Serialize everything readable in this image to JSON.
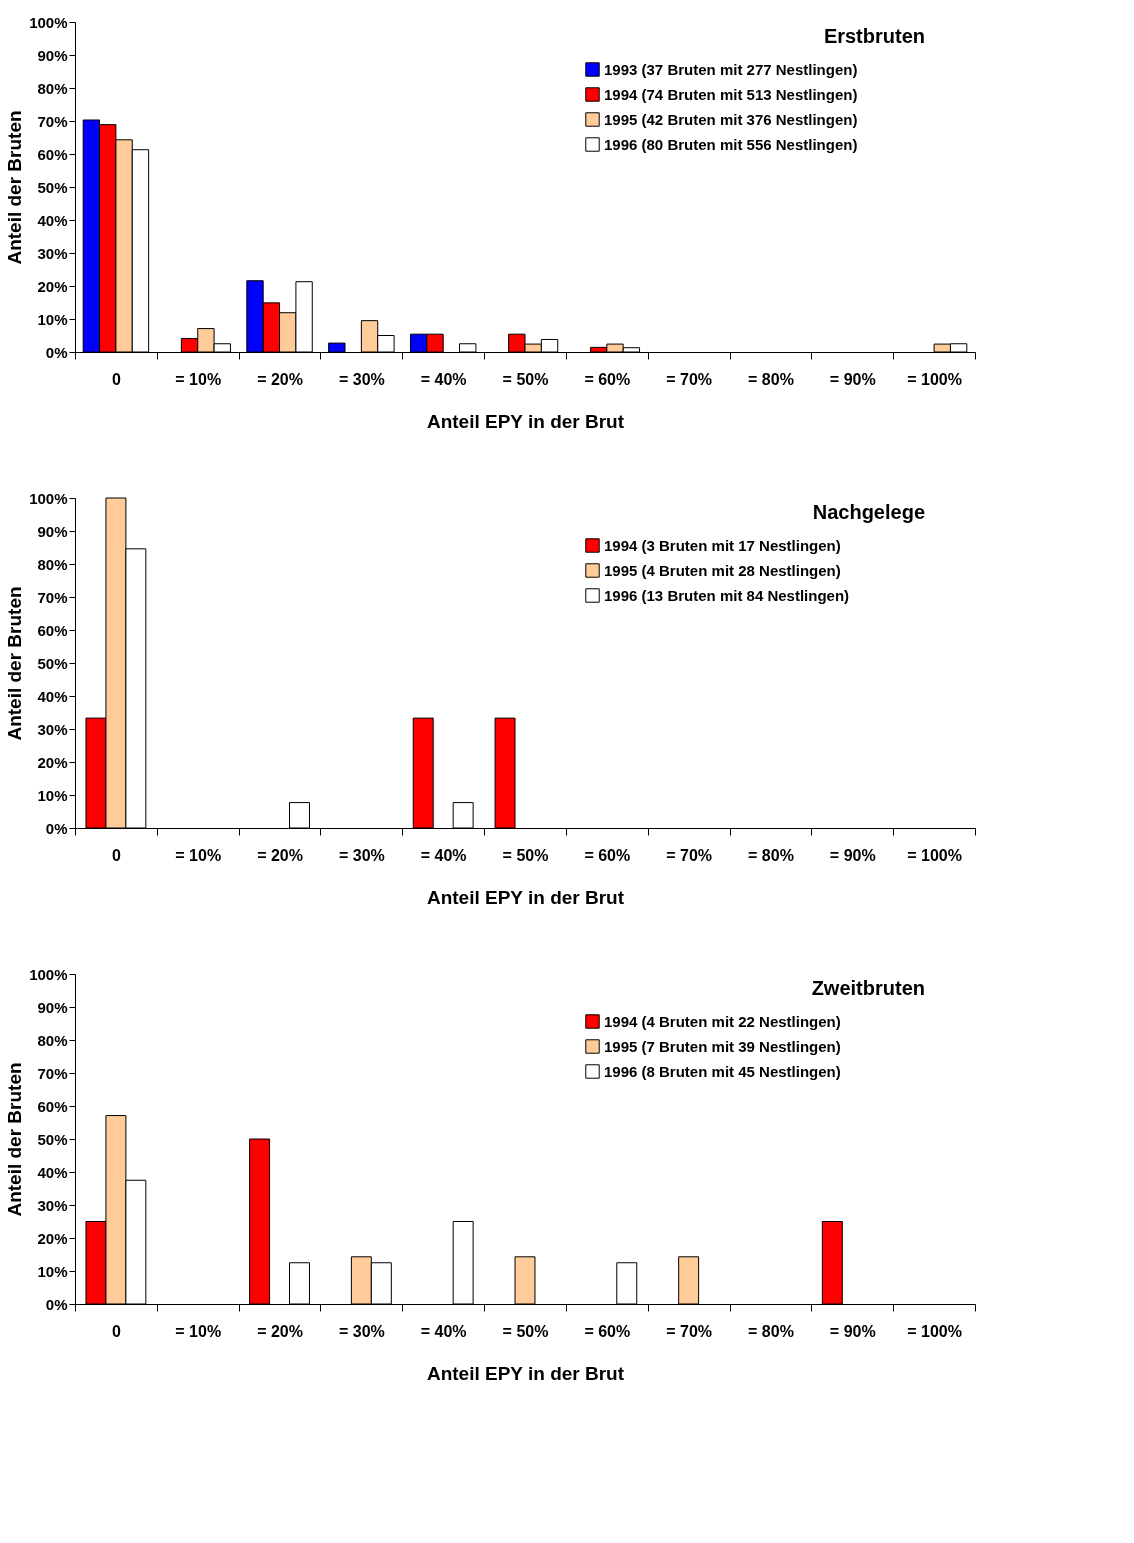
{
  "chart_data": [
    {
      "type": "bar",
      "title": "Erstbruten",
      "xlabel": "Anteil EPY in der Brut",
      "ylabel": "Anteil der Bruten",
      "legend": "top right",
      "grid": false,
      "categories": [
        "0",
        "= 10%",
        "= 20%",
        "= 30%",
        "= 40%",
        "= 50%",
        "= 60%",
        "= 70%",
        "= 80%",
        "= 90%",
        "= 100%"
      ],
      "ylim": [
        0,
        100
      ],
      "yticks": [
        {
          "value": 0,
          "label": "0%"
        },
        {
          "value": 10,
          "label": "10%"
        },
        {
          "value": 20,
          "label": "20%"
        },
        {
          "value": 30,
          "label": "30%"
        },
        {
          "value": 40,
          "label": "40%"
        },
        {
          "value": 50,
          "label": "50%"
        },
        {
          "value": 60,
          "label": "60%"
        },
        {
          "value": 70,
          "label": "70%"
        },
        {
          "value": 80,
          "label": "80%"
        },
        {
          "value": 90,
          "label": "90%"
        },
        {
          "value": 100,
          "label": "100%"
        }
      ],
      "series": [
        {
          "name": "1993 (37 Bruten mit 277 Nestlingen)",
          "color": "#0000ff",
          "values": [
            70.3,
            0,
            21.6,
            2.7,
            5.4,
            0,
            0,
            0,
            0,
            0,
            0
          ]
        },
        {
          "name": "1994 (74 Bruten mit 513 Nestlingen)",
          "color": "#ff0000",
          "values": [
            68.9,
            4.1,
            14.9,
            0,
            5.4,
            5.4,
            1.4,
            0,
            0,
            0,
            0
          ]
        },
        {
          "name": "1995 (42 Bruten mit 376 Nestlingen)",
          "color": "#ffcc99",
          "values": [
            64.3,
            7.1,
            11.9,
            9.5,
            0,
            2.4,
            2.4,
            0,
            0,
            0,
            2.4
          ]
        },
        {
          "name": "1996 (80 Bruten mit 556 Nestlingen)",
          "color": "#ffffff",
          "values": [
            61.3,
            2.5,
            21.3,
            5.0,
            2.5,
            3.8,
            1.3,
            0,
            0,
            0,
            2.5
          ]
        }
      ]
    },
    {
      "type": "bar",
      "title": "Nachgelege",
      "xlabel": "Anteil EPY in der Brut",
      "ylabel": "Anteil der Bruten",
      "legend": "top right",
      "grid": false,
      "categories": [
        "0",
        "= 10%",
        "= 20%",
        "= 30%",
        "= 40%",
        "= 50%",
        "= 60%",
        "= 70%",
        "= 80%",
        "= 90%",
        "= 100%"
      ],
      "ylim": [
        0,
        100
      ],
      "yticks": [
        {
          "value": 0,
          "label": "0%"
        },
        {
          "value": 10,
          "label": "10%"
        },
        {
          "value": 20,
          "label": "20%"
        },
        {
          "value": 30,
          "label": "30%"
        },
        {
          "value": 40,
          "label": "40%"
        },
        {
          "value": 50,
          "label": "50%"
        },
        {
          "value": 60,
          "label": "60%"
        },
        {
          "value": 70,
          "label": "70%"
        },
        {
          "value": 80,
          "label": "80%"
        },
        {
          "value": 90,
          "label": "90%"
        },
        {
          "value": 100,
          "label": "100%"
        }
      ],
      "series": [
        {
          "name": "1994 (3 Bruten mit 17 Nestlingen)",
          "color": "#ff0000",
          "values": [
            33.3,
            0,
            0,
            0,
            33.3,
            33.3,
            0,
            0,
            0,
            0,
            0
          ]
        },
        {
          "name": "1995 (4 Bruten mit 28 Nestlingen)",
          "color": "#ffcc99",
          "values": [
            100,
            0,
            0,
            0,
            0,
            0,
            0,
            0,
            0,
            0,
            0
          ]
        },
        {
          "name": "1996 (13 Bruten mit 84 Nestlingen)",
          "color": "#ffffff",
          "values": [
            84.6,
            0,
            7.7,
            0,
            7.7,
            0,
            0,
            0,
            0,
            0,
            0
          ]
        }
      ]
    },
    {
      "type": "bar",
      "title": "Zweitbruten",
      "xlabel": "Anteil EPY in der Brut",
      "ylabel": "Anteil der Bruten",
      "legend": "top right",
      "grid": false,
      "categories": [
        "0",
        "= 10%",
        "= 20%",
        "= 30%",
        "= 40%",
        "= 50%",
        "= 60%",
        "= 70%",
        "= 80%",
        "= 90%",
        "= 100%"
      ],
      "ylim": [
        0,
        100
      ],
      "yticks": [
        {
          "value": 0,
          "label": "0%"
        },
        {
          "value": 10,
          "label": "10%"
        },
        {
          "value": 20,
          "label": "20%"
        },
        {
          "value": 30,
          "label": "30%"
        },
        {
          "value": 40,
          "label": "40%"
        },
        {
          "value": 50,
          "label": "50%"
        },
        {
          "value": 60,
          "label": "60%"
        },
        {
          "value": 70,
          "label": "70%"
        },
        {
          "value": 80,
          "label": "80%"
        },
        {
          "value": 90,
          "label": "90%"
        },
        {
          "value": 100,
          "label": "100%"
        }
      ],
      "series": [
        {
          "name": "1994 (4 Bruten mit 22 Nestlingen)",
          "color": "#ff0000",
          "values": [
            25,
            0,
            50,
            0,
            0,
            0,
            0,
            0,
            0,
            25,
            0
          ]
        },
        {
          "name": "1995 (7 Bruten mit 39 Nestlingen)",
          "color": "#ffcc99",
          "values": [
            57.1,
            0,
            0,
            14.3,
            0,
            14.3,
            0,
            14.3,
            0,
            0,
            0
          ]
        },
        {
          "name": "1996 (8 Bruten mit 45 Nestlingen)",
          "color": "#ffffff",
          "values": [
            37.5,
            0,
            12.5,
            12.5,
            25,
            0,
            12.5,
            0,
            0,
            0,
            0
          ]
        }
      ]
    }
  ]
}
